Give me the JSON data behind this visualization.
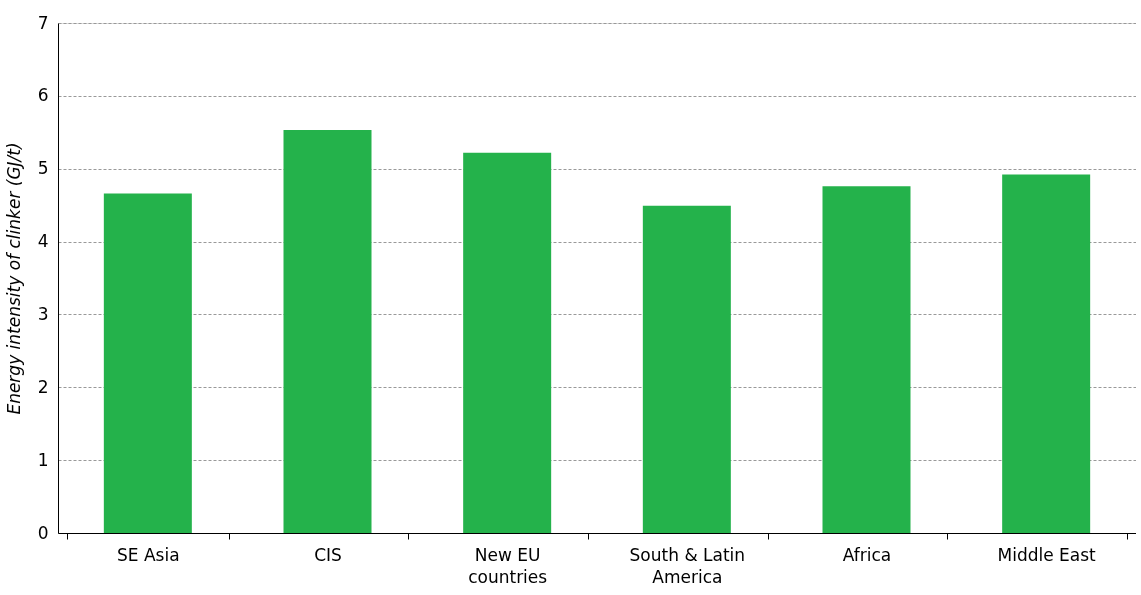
{
  "chart_data": {
    "type": "bar",
    "ylabel": "Energy intensity of clinker (GJ/t)",
    "categories": [
      "SE Asia",
      "CIS",
      "New EU countries",
      "South & Latin America",
      "Africa",
      "Middle East"
    ],
    "values": [
      4.66,
      5.53,
      5.22,
      4.49,
      4.76,
      4.92
    ],
    "color": "#24b24b",
    "ylim": [
      0,
      7
    ],
    "yticks": [
      0,
      1,
      2,
      3,
      4,
      5,
      6,
      7
    ],
    "grid": "y"
  }
}
